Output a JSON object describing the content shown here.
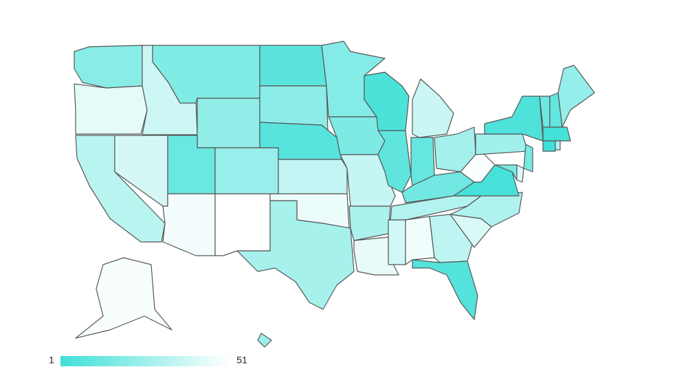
{
  "chart_data": {
    "type": "choropleth",
    "values": [
      20,
      44,
      33,
      40,
      38,
      18,
      22,
      12,
      24,
      48,
      51,
      8,
      21,
      7,
      35,
      46,
      28,
      19,
      17,
      36,
      29,
      45,
      4,
      9,
      37,
      11,
      27,
      14,
      31,
      39,
      47,
      34,
      6,
      41,
      30,
      3,
      50,
      26,
      5,
      13,
      10,
      23,
      2,
      1,
      15,
      16,
      42,
      32,
      49,
      25
    ],
    "colorscale": [
      "#40e0d8",
      "#ffffff"
    ],
    "colorbar": {
      "min": 1,
      "max": 51
    }
  }
}
